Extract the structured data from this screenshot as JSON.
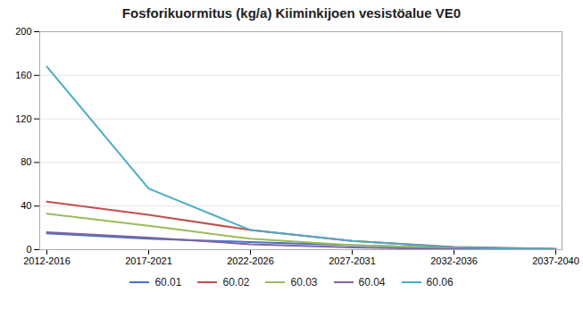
{
  "chart_data": {
    "type": "line",
    "title": "Fosforikuormitus (kg/a) Kiiminkijoen vesistöalue VE0",
    "categories": [
      "2012-2016",
      "2017-2021",
      "2022-2026",
      "2027-2031",
      "2032-2036",
      "2037-2040"
    ],
    "series": [
      {
        "name": "60.01",
        "color": "#4472C4",
        "values": [
          15,
          10,
          7,
          4,
          1.5,
          0.5
        ]
      },
      {
        "name": "60.02",
        "color": "#C0504D",
        "values": [
          44,
          32,
          18,
          8,
          2.5,
          0.8
        ]
      },
      {
        "name": "60.03",
        "color": "#9BBB59",
        "values": [
          33,
          22,
          10,
          4,
          1.5,
          0.5
        ]
      },
      {
        "name": "60.04",
        "color": "#8064A2",
        "values": [
          16,
          11,
          5,
          2,
          0.5,
          0.2
        ]
      },
      {
        "name": "60.06",
        "color": "#4BACC6",
        "values": [
          168,
          56,
          18,
          8,
          2,
          0.5
        ]
      }
    ],
    "ylim": [
      0,
      200
    ],
    "yticks": [
      0,
      40,
      80,
      120,
      160,
      200
    ],
    "grid": true,
    "legend": "bottom"
  }
}
